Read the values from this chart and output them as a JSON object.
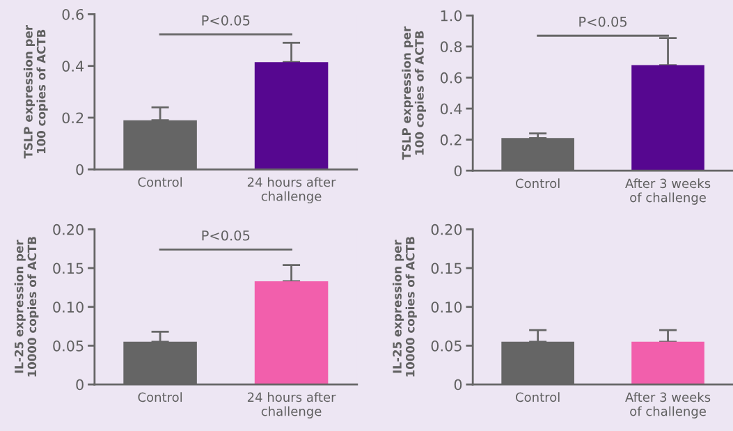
{
  "chart_data": [
    {
      "type": "bar",
      "ylabel": "TSLP expression per 100 copies of ACTB",
      "categories": [
        "Control",
        "24 hours after challenge"
      ],
      "values": [
        0.19,
        0.415
      ],
      "colors": [
        "#656565",
        "#560790"
      ],
      "errors": [
        [
          0.19,
          0.24
        ],
        [
          0.415,
          0.49
        ]
      ],
      "ylim": [
        0,
        0.6
      ],
      "yticks": [
        0,
        0.2,
        0.4,
        0.6
      ],
      "annotations": [
        "P<0.05"
      ]
    },
    {
      "type": "bar",
      "ylabel": "TSLP expression per 100 copies of ACTB",
      "categories": [
        "Control",
        "After 3 weeks of challenge"
      ],
      "values": [
        0.21,
        0.68
      ],
      "colors": [
        "#656565",
        "#560790"
      ],
      "errors": [
        [
          0.21,
          0.24
        ],
        [
          0.68,
          0.855
        ]
      ],
      "ylim": [
        0,
        1.0
      ],
      "yticks": [
        0,
        0.2,
        0.4,
        0.6,
        0.8,
        {
          "value": 1.0,
          "label": "1.0"
        }
      ],
      "annotations": [
        "P<0.05"
      ]
    },
    {
      "type": "bar",
      "ylabel": "IL-25 expression per 10000 copies of ACTB",
      "categories": [
        "Control",
        "24 hours after challenge"
      ],
      "values": [
        0.055,
        0.133
      ],
      "colors": [
        "#656565",
        "#f25fac"
      ],
      "errors": [
        [
          0.055,
          0.068
        ],
        [
          0.133,
          0.154
        ]
      ],
      "ylim": [
        0,
        0.2
      ],
      "yticks": [
        0,
        {
          "value": 0.05,
          "label": "0.05"
        },
        {
          "value": 0.1,
          "label": "0.10"
        },
        {
          "value": 0.15,
          "label": "0.15"
        },
        {
          "value": 0.2,
          "label": "0.20"
        }
      ],
      "annotations": [
        "P<0.05"
      ]
    },
    {
      "type": "bar",
      "ylabel": "IL-25 expression per 10000 copies of ACTB",
      "categories": [
        "Control",
        "After 3 weeks of challenge"
      ],
      "values": [
        0.055,
        0.055
      ],
      "colors": [
        "#656565",
        "#f25fac"
      ],
      "errors": [
        [
          0.055,
          0.07
        ],
        [
          0.055,
          0.07
        ]
      ],
      "ylim": [
        0,
        0.2
      ],
      "yticks": [
        0,
        {
          "value": 0.05,
          "label": "0.05"
        },
        {
          "value": 0.1,
          "label": "0.10"
        },
        {
          "value": 0.15,
          "label": "0.15"
        },
        {
          "value": 0.2,
          "label": "0.20"
        }
      ]
    }
  ]
}
